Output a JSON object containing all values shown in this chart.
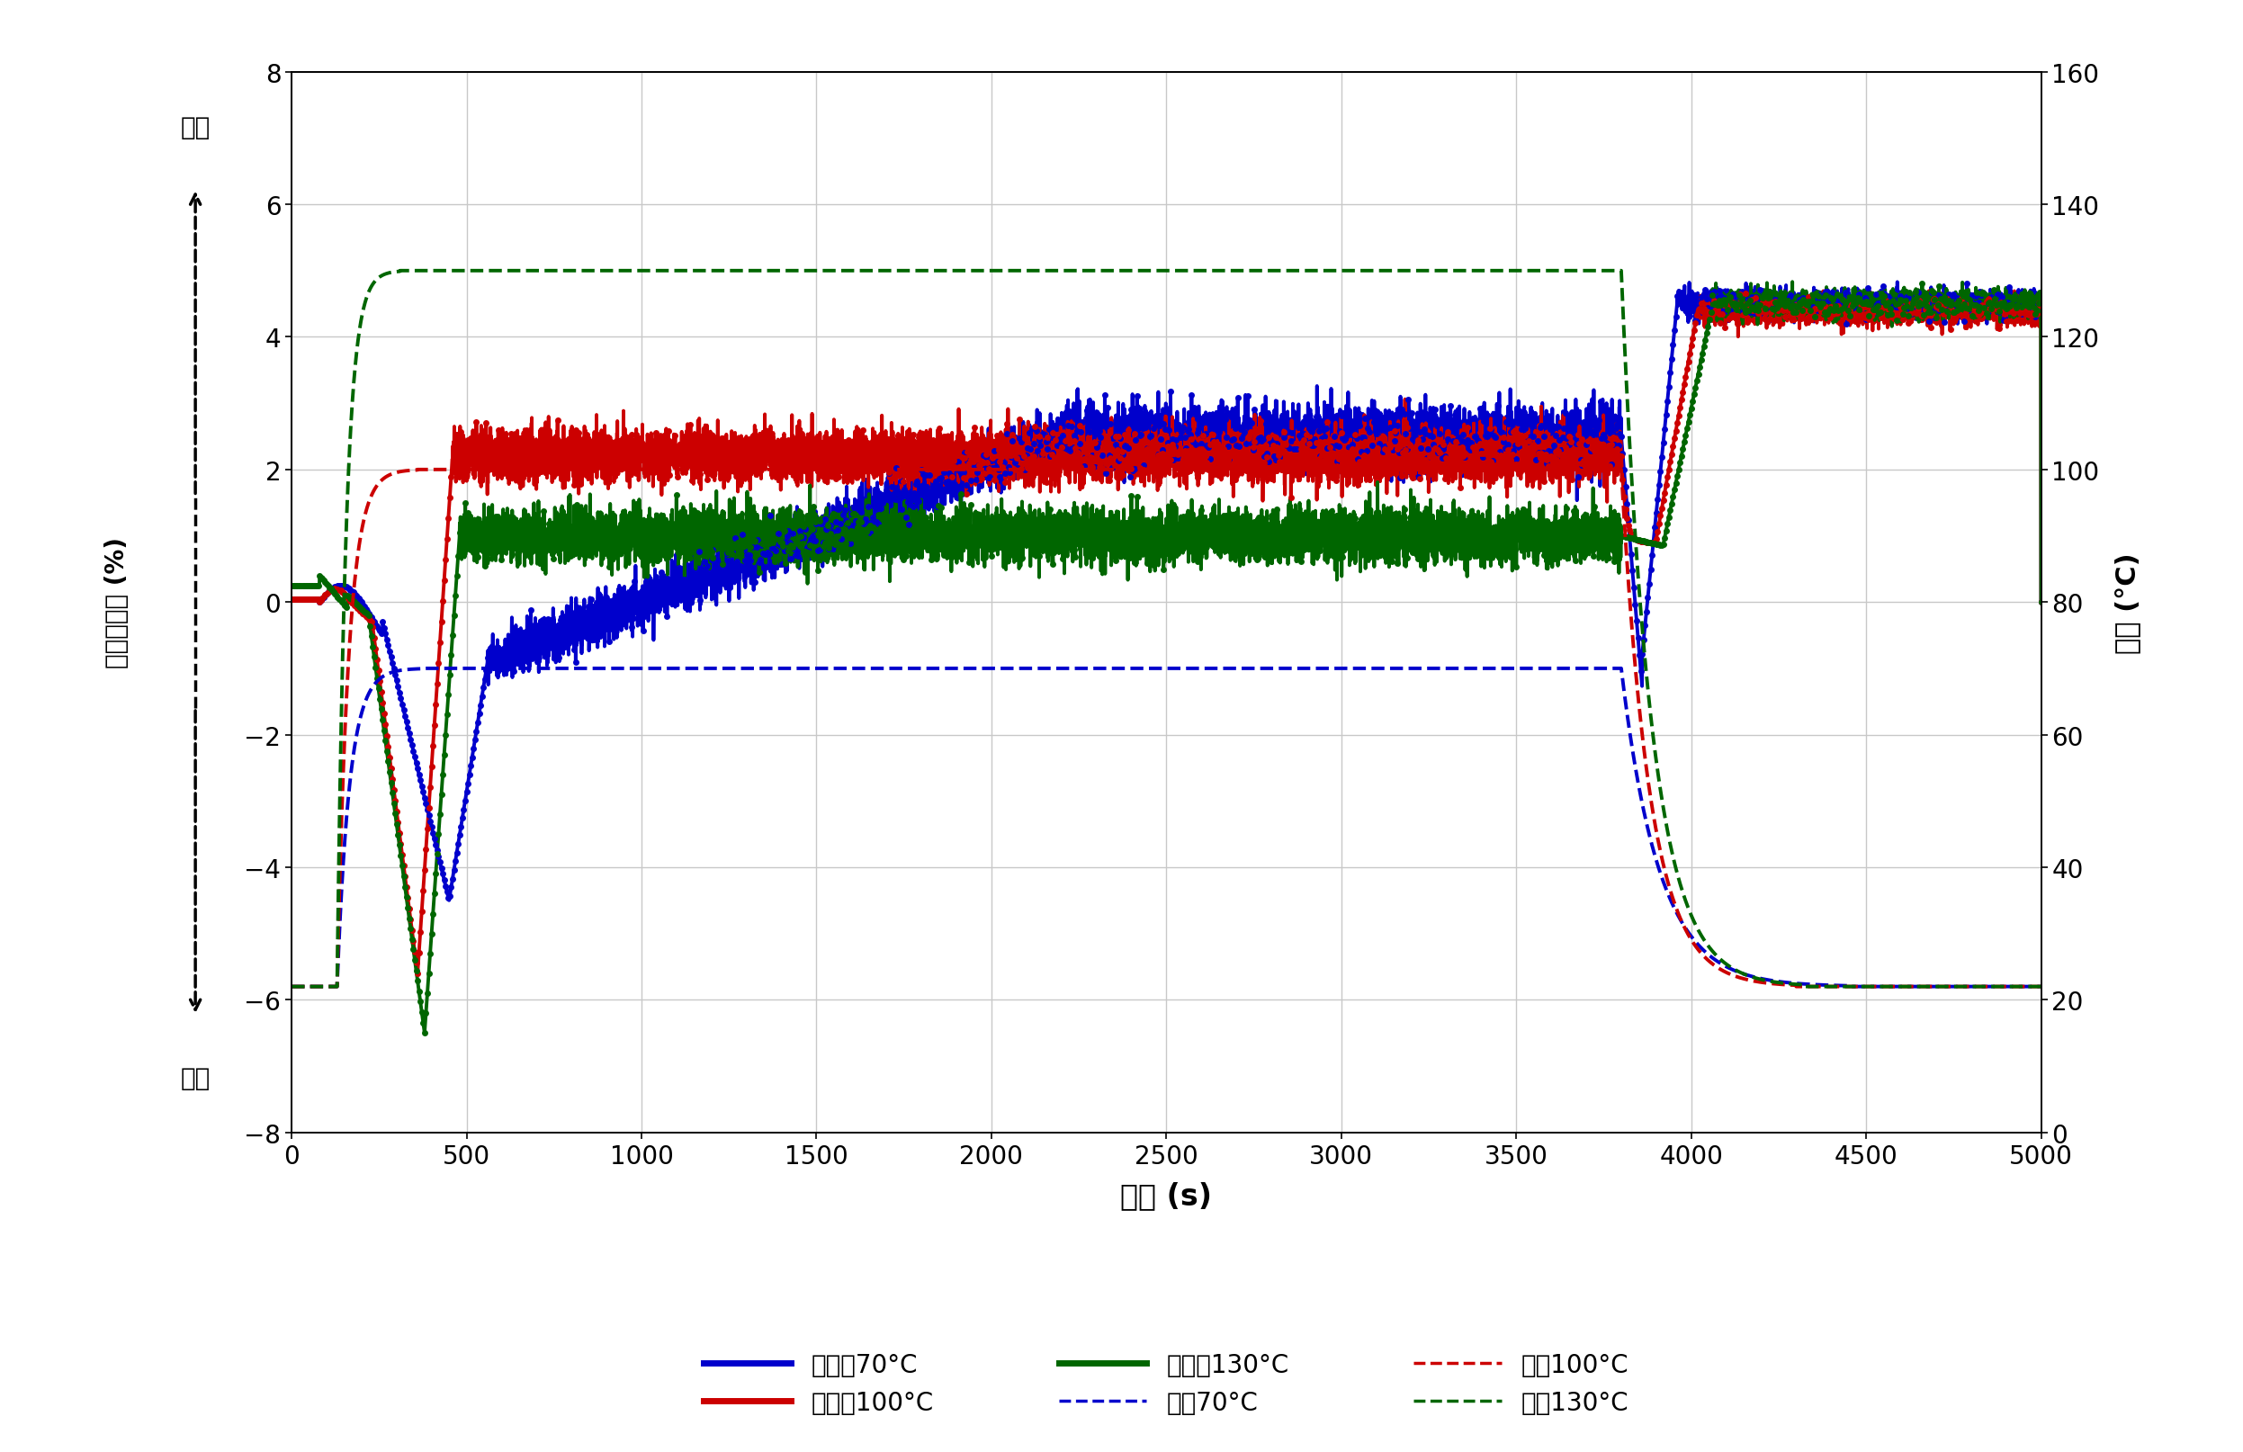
{
  "xlabel": "時間 (s)",
  "ylabel_right": "温度 (°C)",
  "ylabel_left_label": "体積減少率 (%)",
  "label_shrink": "收縮",
  "label_expand": "膨張",
  "xlim": [
    0,
    5000
  ],
  "ylim_left": [
    -8.0,
    8.0
  ],
  "ylim_right": [
    0.0,
    160.0
  ],
  "xticks": [
    0,
    500,
    1000,
    1500,
    2000,
    2500,
    3000,
    3500,
    4000,
    4500,
    5000
  ],
  "yticks_left": [
    -8.0,
    -6.0,
    -4.0,
    -2.0,
    0.0,
    2.0,
    4.0,
    6.0,
    8.0
  ],
  "yticks_right": [
    0.0,
    20.0,
    40.0,
    60.0,
    80.0,
    100.0,
    120.0,
    140.0,
    160.0
  ],
  "colors": {
    "blue": "#0000CC",
    "red": "#CC0000",
    "green": "#006600"
  },
  "legend_entries": [
    "收縮率70°C",
    "收縮率100°C",
    "收縮率130°C",
    "温度70°C",
    "温度100°C",
    "温度130°C"
  ],
  "bg_color": "#ffffff",
  "grid_color": "#c8c8c8",
  "temp70": 70,
  "temp100": 100,
  "temp130": 130,
  "ambient": 22
}
